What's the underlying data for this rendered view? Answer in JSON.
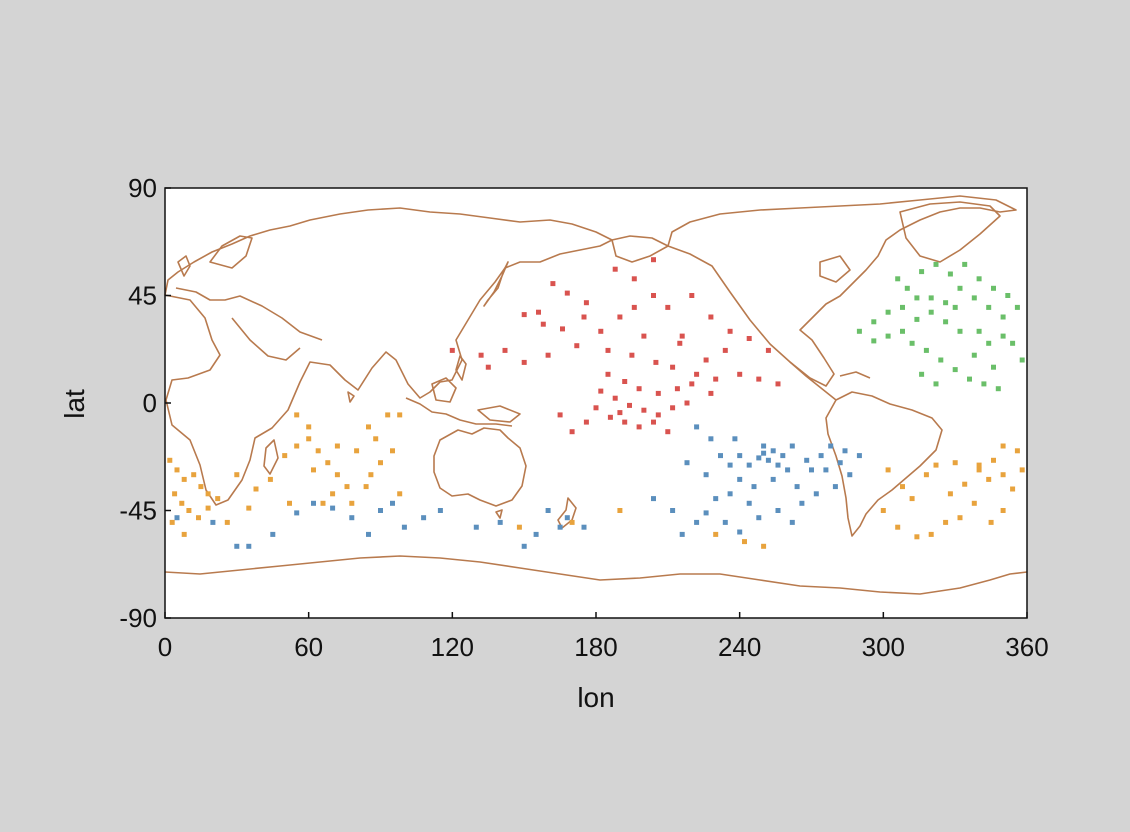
{
  "chart_data": {
    "type": "scatter",
    "basemap": "world coastlines (0-360 longitude)",
    "xlabel": "lon",
    "ylabel": "lat",
    "xlim": [
      0,
      360
    ],
    "ylim": [
      -90,
      90
    ],
    "xticks": [
      "0",
      "60",
      "120",
      "180",
      "240",
      "300",
      "360"
    ],
    "yticks": [
      "90",
      "45",
      "0",
      "-45",
      "-90"
    ],
    "grid": false,
    "legend": "none",
    "colors": {
      "background": "#d4d4d4",
      "plot_area": "#ffffff",
      "coastline": "#b87a4e"
    },
    "series": [
      {
        "color": "#d9534f",
        "points": [
          [
            162,
            50
          ],
          [
            168,
            46
          ],
          [
            176,
            42
          ],
          [
            150,
            37
          ],
          [
            158,
            33
          ],
          [
            166,
            31
          ],
          [
            175,
            36
          ],
          [
            182,
            30
          ],
          [
            190,
            36
          ],
          [
            196,
            40
          ],
          [
            204,
            45
          ],
          [
            210,
            40
          ],
          [
            220,
            45
          ],
          [
            228,
            36
          ],
          [
            236,
            30
          ],
          [
            244,
            27
          ],
          [
            252,
            22
          ],
          [
            200,
            28
          ],
          [
            215,
            25
          ],
          [
            185,
            22
          ],
          [
            195,
            20
          ],
          [
            205,
            17
          ],
          [
            212,
            15
          ],
          [
            222,
            12
          ],
          [
            230,
            10
          ],
          [
            240,
            12
          ],
          [
            248,
            10
          ],
          [
            256,
            8
          ],
          [
            185,
            12
          ],
          [
            192,
            9
          ],
          [
            198,
            6
          ],
          [
            206,
            4
          ],
          [
            214,
            6
          ],
          [
            220,
            8
          ],
          [
            182,
            5
          ],
          [
            188,
            2
          ],
          [
            194,
            -1
          ],
          [
            200,
            -3
          ],
          [
            206,
            -5
          ],
          [
            212,
            -2
          ],
          [
            218,
            0
          ],
          [
            186,
            -6
          ],
          [
            192,
            -8
          ],
          [
            198,
            -10
          ],
          [
            204,
            -8
          ],
          [
            210,
            -12
          ],
          [
            180,
            -2
          ],
          [
            176,
            -8
          ],
          [
            170,
            -12
          ],
          [
            165,
            -5
          ],
          [
            160,
            20
          ],
          [
            150,
            17
          ],
          [
            142,
            22
          ],
          [
            132,
            20
          ],
          [
            120,
            22
          ],
          [
            135,
            15
          ],
          [
            156,
            38
          ],
          [
            172,
            24
          ],
          [
            226,
            18
          ],
          [
            234,
            22
          ],
          [
            204,
            60
          ],
          [
            188,
            56
          ],
          [
            196,
            52
          ],
          [
            216,
            28
          ],
          [
            228,
            4
          ],
          [
            190,
            -4
          ]
        ]
      },
      {
        "color": "#5b8fbd",
        "points": [
          [
            232,
            -22
          ],
          [
            236,
            -26
          ],
          [
            240,
            -22
          ],
          [
            244,
            -26
          ],
          [
            248,
            -23
          ],
          [
            250,
            -21
          ],
          [
            252,
            -24
          ],
          [
            254,
            -20
          ],
          [
            256,
            -26
          ],
          [
            258,
            -22
          ],
          [
            260,
            -28
          ],
          [
            240,
            -32
          ],
          [
            246,
            -35
          ],
          [
            236,
            -38
          ],
          [
            230,
            -40
          ],
          [
            226,
            -46
          ],
          [
            222,
            -50
          ],
          [
            212,
            -45
          ],
          [
            204,
            -40
          ],
          [
            216,
            -55
          ],
          [
            234,
            -50
          ],
          [
            240,
            -54
          ],
          [
            248,
            -48
          ],
          [
            256,
            -45
          ],
          [
            264,
            -35
          ],
          [
            270,
            -28
          ],
          [
            274,
            -22
          ],
          [
            278,
            -18
          ],
          [
            282,
            -25
          ],
          [
            286,
            -30
          ],
          [
            280,
            -35
          ],
          [
            272,
            -38
          ],
          [
            266,
            -42
          ],
          [
            262,
            -50
          ],
          [
            226,
            -30
          ],
          [
            218,
            -25
          ],
          [
            228,
            -15
          ],
          [
            222,
            -10
          ],
          [
            238,
            -15
          ],
          [
            250,
            -18
          ],
          [
            262,
            -18
          ],
          [
            268,
            -24
          ],
          [
            284,
            -20
          ],
          [
            290,
            -22
          ],
          [
            276,
            -28
          ],
          [
            160,
            -45
          ],
          [
            168,
            -48
          ],
          [
            175,
            -52
          ],
          [
            155,
            -55
          ],
          [
            150,
            -60
          ],
          [
            165,
            -52
          ],
          [
            140,
            -50
          ],
          [
            130,
            -52
          ],
          [
            115,
            -45
          ],
          [
            108,
            -48
          ],
          [
            100,
            -52
          ],
          [
            95,
            -42
          ],
          [
            90,
            -45
          ],
          [
            85,
            -55
          ],
          [
            78,
            -48
          ],
          [
            70,
            -44
          ],
          [
            62,
            -42
          ],
          [
            55,
            -46
          ],
          [
            45,
            -55
          ],
          [
            35,
            -60
          ],
          [
            30,
            -60
          ],
          [
            20,
            -50
          ],
          [
            5,
            -48
          ],
          [
            244,
            -42
          ],
          [
            254,
            -32
          ]
        ]
      },
      {
        "color": "#e8a33d",
        "points": [
          [
            2,
            -24
          ],
          [
            5,
            -28
          ],
          [
            8,
            -32
          ],
          [
            12,
            -30
          ],
          [
            15,
            -35
          ],
          [
            18,
            -38
          ],
          [
            4,
            -38
          ],
          [
            7,
            -42
          ],
          [
            10,
            -45
          ],
          [
            14,
            -48
          ],
          [
            18,
            -44
          ],
          [
            22,
            -40
          ],
          [
            3,
            -50
          ],
          [
            8,
            -55
          ],
          [
            26,
            -50
          ],
          [
            30,
            -30
          ],
          [
            38,
            -36
          ],
          [
            44,
            -32
          ],
          [
            50,
            -22
          ],
          [
            55,
            -18
          ],
          [
            60,
            -15
          ],
          [
            64,
            -20
          ],
          [
            68,
            -25
          ],
          [
            72,
            -30
          ],
          [
            76,
            -35
          ],
          [
            70,
            -38
          ],
          [
            66,
            -42
          ],
          [
            60,
            -10
          ],
          [
            55,
            -5
          ],
          [
            62,
            -28
          ],
          [
            80,
            -20
          ],
          [
            85,
            -10
          ],
          [
            88,
            -15
          ],
          [
            90,
            -25
          ],
          [
            93,
            -5
          ],
          [
            95,
            -20
          ],
          [
            98,
            -5
          ],
          [
            84,
            -35
          ],
          [
            78,
            -42
          ],
          [
            86,
            -30
          ],
          [
            302,
            -28
          ],
          [
            308,
            -35
          ],
          [
            312,
            -40
          ],
          [
            318,
            -30
          ],
          [
            322,
            -26
          ],
          [
            328,
            -38
          ],
          [
            334,
            -34
          ],
          [
            340,
            -28
          ],
          [
            346,
            -24
          ],
          [
            350,
            -30
          ],
          [
            354,
            -36
          ],
          [
            358,
            -28
          ],
          [
            356,
            -20
          ],
          [
            350,
            -18
          ],
          [
            344,
            -32
          ],
          [
            338,
            -42
          ],
          [
            332,
            -48
          ],
          [
            326,
            -50
          ],
          [
            320,
            -55
          ],
          [
            314,
            -56
          ],
          [
            306,
            -52
          ],
          [
            300,
            -45
          ],
          [
            350,
            -45
          ],
          [
            345,
            -50
          ],
          [
            340,
            -26
          ],
          [
            330,
            -25
          ],
          [
            148,
            -52
          ],
          [
            170,
            -50
          ],
          [
            230,
            -55
          ],
          [
            242,
            -58
          ],
          [
            250,
            -60
          ],
          [
            190,
            -45
          ],
          [
            52,
            -42
          ],
          [
            35,
            -44
          ],
          [
            98,
            -38
          ],
          [
            72,
            -18
          ]
        ]
      },
      {
        "color": "#6abf69",
        "points": [
          [
            306,
            52
          ],
          [
            310,
            48
          ],
          [
            316,
            55
          ],
          [
            322,
            58
          ],
          [
            328,
            54
          ],
          [
            334,
            58
          ],
          [
            340,
            52
          ],
          [
            346,
            48
          ],
          [
            352,
            45
          ],
          [
            356,
            40
          ],
          [
            350,
            36
          ],
          [
            344,
            40
          ],
          [
            338,
            44
          ],
          [
            332,
            48
          ],
          [
            326,
            42
          ],
          [
            320,
            38
          ],
          [
            314,
            35
          ],
          [
            308,
            30
          ],
          [
            302,
            28
          ],
          [
            296,
            26
          ],
          [
            312,
            25
          ],
          [
            318,
            22
          ],
          [
            324,
            18
          ],
          [
            330,
            14
          ],
          [
            336,
            10
          ],
          [
            342,
            8
          ],
          [
            348,
            6
          ],
          [
            338,
            20
          ],
          [
            344,
            25
          ],
          [
            350,
            28
          ],
          [
            332,
            30
          ],
          [
            326,
            34
          ],
          [
            320,
            44
          ],
          [
            314,
            44
          ],
          [
            308,
            40
          ],
          [
            302,
            38
          ],
          [
            296,
            34
          ],
          [
            290,
            30
          ],
          [
            316,
            12
          ],
          [
            322,
            8
          ],
          [
            340,
            30
          ],
          [
            346,
            15
          ],
          [
            354,
            25
          ],
          [
            358,
            18
          ],
          [
            330,
            40
          ]
        ]
      }
    ]
  }
}
